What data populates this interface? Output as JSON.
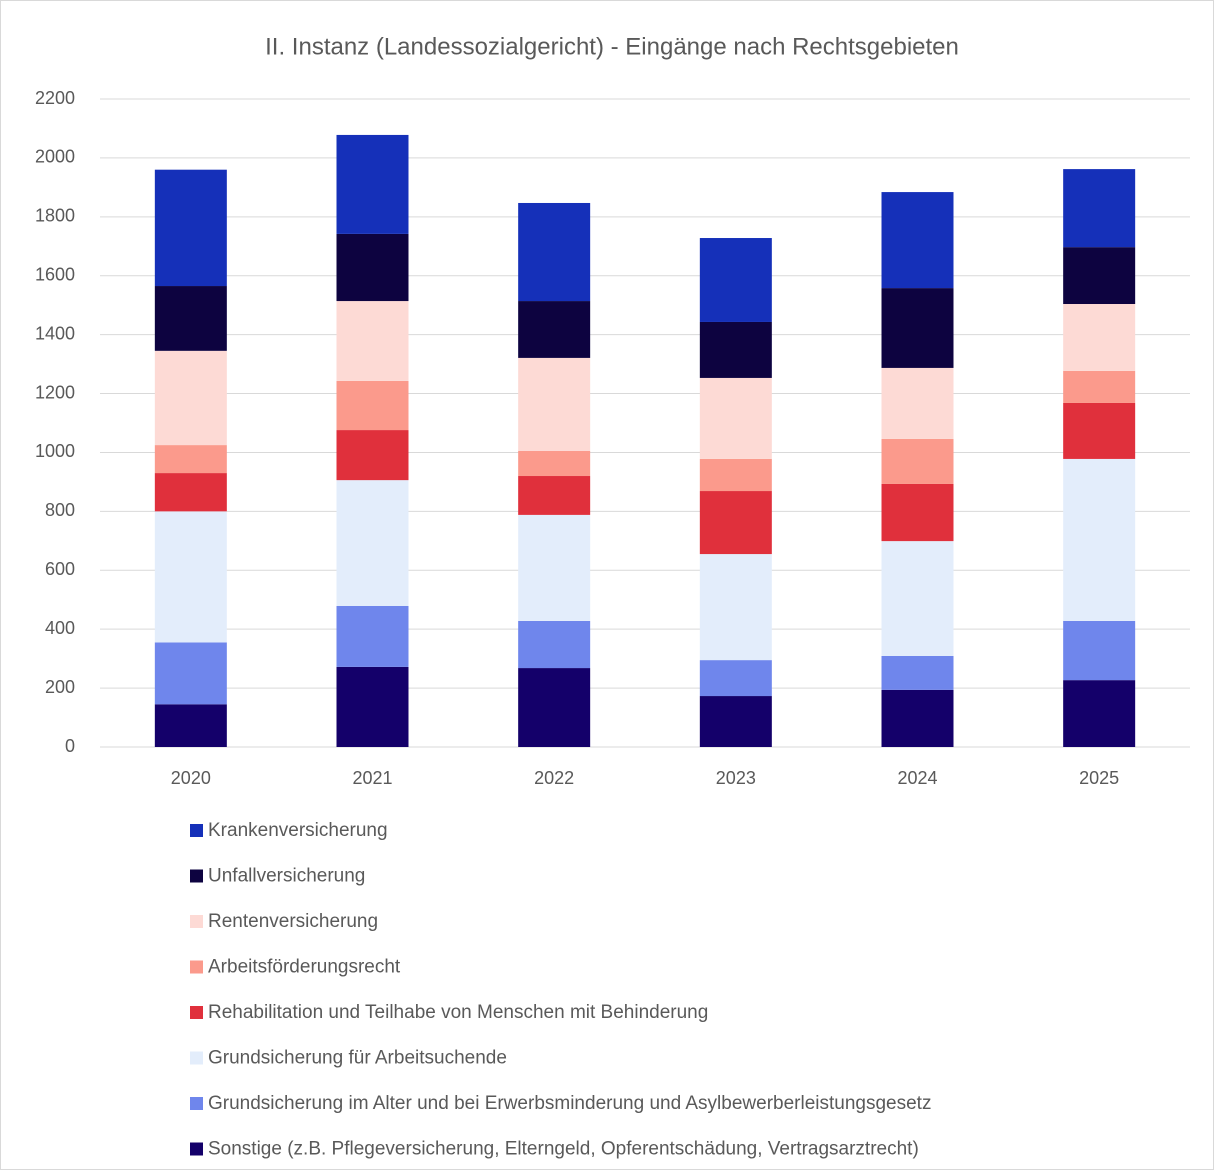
{
  "chart_data": {
    "type": "stacked_bar",
    "title": "II. Instanz (Landessozialgericht) - Eingänge nach Rechtsgebieten",
    "categories": [
      "2020",
      "2021",
      "2022",
      "2023",
      "2024",
      "2025"
    ],
    "series": [
      {
        "name": "Sonstige (z.B. Pflegeversicherung, Elterngeld, Opferentschädung, Vertragsarztrecht)",
        "color": "#14006a",
        "values": [
          145,
          272,
          268,
          173,
          194,
          227
        ]
      },
      {
        "name": "Grundsicherung im Alter und bei Erwerbsminderung und Asylbewerberleistungsgesetz",
        "color": "#6f86ec",
        "values": [
          210,
          207,
          160,
          122,
          115,
          201
        ]
      },
      {
        "name": "Grundsicherung für Arbeitsuchende",
        "color": "#e3edfb",
        "values": [
          445,
          427,
          360,
          360,
          390,
          550
        ]
      },
      {
        "name": "Rehabilitation und Teilhabe von Menschen mit Behinderung",
        "color": "#e0303c",
        "values": [
          130,
          170,
          132,
          214,
          194,
          190
        ]
      },
      {
        "name": "Arbeitsförderungsrecht",
        "color": "#fb9a8c",
        "values": [
          95,
          167,
          85,
          109,
          153,
          109
        ]
      },
      {
        "name": "Rentenversicherung",
        "color": "#fddad5",
        "values": [
          320,
          271,
          316,
          275,
          241,
          227
        ]
      },
      {
        "name": "Unfallversicherung",
        "color": "#0d0340",
        "values": [
          220,
          228,
          193,
          190,
          271,
          193
        ]
      },
      {
        "name": "Krankenversicherung",
        "color": "#1530b9",
        "values": [
          395,
          336,
          333,
          285,
          326,
          265
        ]
      }
    ],
    "ylim": [
      0,
      2200
    ],
    "yticks": [
      0,
      200,
      400,
      600,
      800,
      1000,
      1200,
      1400,
      1600,
      1800,
      2000,
      2200
    ],
    "grid": true,
    "legend": "bottom"
  }
}
